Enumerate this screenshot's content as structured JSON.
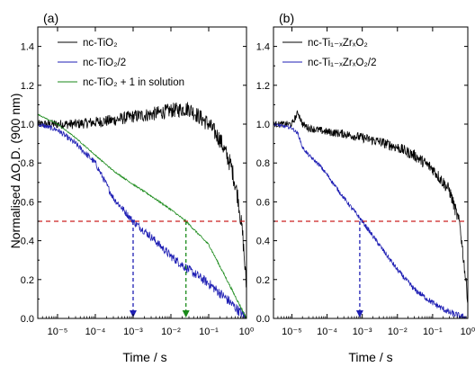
{
  "panels": [
    {
      "label": "(a)",
      "legend": [
        {
          "text": "nc-TiO₂",
          "color": "#000000"
        },
        {
          "text": "nc-TiO₂/2",
          "color": "#1f1fb4"
        },
        {
          "text": "nc-TiO₂ + 1 in solution",
          "color": "#1a8a1a"
        }
      ],
      "xlabel": "Time / s"
    },
    {
      "label": "(b)",
      "legend": [
        {
          "text": "nc-Ti₁₋ₓZrₓO₂",
          "color": "#000000"
        },
        {
          "text": "nc-Ti₁₋ₓZrₓO₂/2",
          "color": "#1f1fb4"
        }
      ],
      "xlabel": "Time / s"
    }
  ],
  "ylabel": "Normalised ΔO.D. (900 nm)",
  "chart_data": [
    {
      "type": "line",
      "xscale": "log",
      "xlim": [
        3e-06,
        1
      ],
      "ylim": [
        0,
        1.5
      ],
      "xticks": [
        1e-05,
        0.0001,
        0.001,
        0.01,
        0.1,
        1
      ],
      "xtick_labels": [
        "10⁻⁵",
        "10⁻⁴",
        "10⁻³",
        "10⁻²",
        "10⁻¹",
        "10⁰"
      ],
      "yticks": [
        0.0,
        0.2,
        0.4,
        0.6,
        0.8,
        1.0,
        1.2,
        1.4
      ],
      "ytick_labels": [
        "0.0",
        "0.2",
        "0.4",
        "0.6",
        "0.8",
        "1.0",
        "1.2",
        "1.4"
      ],
      "hline": {
        "y": 0.5,
        "color": "#cc2222"
      },
      "vmarkers": [
        {
          "x": 0.001,
          "color": "#1f1fb4"
        },
        {
          "x": 0.025,
          "color": "#1a8a1a"
        }
      ],
      "series": [
        {
          "name": "nc-TiO₂",
          "color": "#000000",
          "x": [
            3e-06,
            1e-05,
            3e-05,
            0.0001,
            0.0003,
            0.001,
            0.003,
            0.01,
            0.03,
            0.1,
            0.2,
            0.4,
            0.6,
            0.8,
            1.0
          ],
          "y": [
            1.0,
            1.0,
            1.0,
            1.01,
            1.02,
            1.04,
            1.05,
            1.07,
            1.08,
            1.0,
            0.92,
            0.78,
            0.62,
            0.42,
            0.15
          ],
          "noise": 0.035
        },
        {
          "name": "nc-TiO₂/2",
          "color": "#1f1fb4",
          "x": [
            3e-06,
            1e-05,
            3e-05,
            0.0001,
            0.0003,
            0.001,
            0.003,
            0.01,
            0.03,
            0.1,
            0.3,
            1.0
          ],
          "y": [
            1.0,
            0.97,
            0.9,
            0.8,
            0.62,
            0.5,
            0.42,
            0.32,
            0.25,
            0.18,
            0.1,
            0.0
          ],
          "noise": 0.02
        },
        {
          "name": "nc-TiO₂ + 1 in solution",
          "color": "#1a8a1a",
          "x": [
            3e-06,
            1e-05,
            3e-05,
            0.0001,
            0.0003,
            0.001,
            0.003,
            0.01,
            0.025,
            0.1,
            0.3,
            1.0
          ],
          "y": [
            1.05,
            1.0,
            0.93,
            0.84,
            0.76,
            0.69,
            0.63,
            0.56,
            0.5,
            0.38,
            0.2,
            0.0
          ],
          "noise": 0.004
        }
      ]
    },
    {
      "type": "line",
      "xscale": "log",
      "xlim": [
        3e-06,
        1
      ],
      "ylim": [
        0,
        1.5
      ],
      "xticks": [
        1e-05,
        0.0001,
        0.001,
        0.01,
        0.1,
        1
      ],
      "xtick_labels": [
        "10⁻⁵",
        "10⁻⁴",
        "10⁻³",
        "10⁻²",
        "10⁻¹",
        "10⁰"
      ],
      "yticks": [
        0.0,
        0.2,
        0.4,
        0.6,
        0.8,
        1.0,
        1.2,
        1.4
      ],
      "ytick_labels": [
        "0.0",
        "0.2",
        "0.4",
        "0.6",
        "0.8",
        "1.0",
        "1.2",
        "1.4"
      ],
      "hline": {
        "y": 0.5,
        "color": "#cc2222"
      },
      "vmarkers": [
        {
          "x": 0.00085,
          "color": "#1f1fb4"
        }
      ],
      "series": [
        {
          "name": "nc-Ti₁₋ₓZrₓO₂",
          "color": "#000000",
          "x": [
            3e-06,
            1e-05,
            1.5e-05,
            2e-05,
            3e-05,
            0.0001,
            0.0003,
            0.001,
            0.003,
            0.01,
            0.03,
            0.1,
            0.3,
            0.6,
            1.0
          ],
          "y": [
            1.0,
            1.0,
            1.06,
            1.0,
            0.98,
            0.96,
            0.95,
            0.93,
            0.91,
            0.88,
            0.84,
            0.77,
            0.66,
            0.48,
            0.1
          ],
          "noise": 0.025
        },
        {
          "name": "nc-Ti₁₋ₓZrₓO₂/2",
          "color": "#1f1fb4",
          "x": [
            3e-06,
            1e-05,
            1.5e-05,
            2e-05,
            3e-05,
            6e-05,
            0.0001,
            0.0003,
            0.001,
            0.003,
            0.01,
            0.03,
            0.1,
            0.3,
            1.0
          ],
          "y": [
            1.0,
            0.98,
            0.95,
            0.88,
            0.84,
            0.79,
            0.74,
            0.62,
            0.5,
            0.38,
            0.25,
            0.15,
            0.08,
            0.03,
            0.0
          ],
          "noise": 0.012
        }
      ]
    }
  ]
}
